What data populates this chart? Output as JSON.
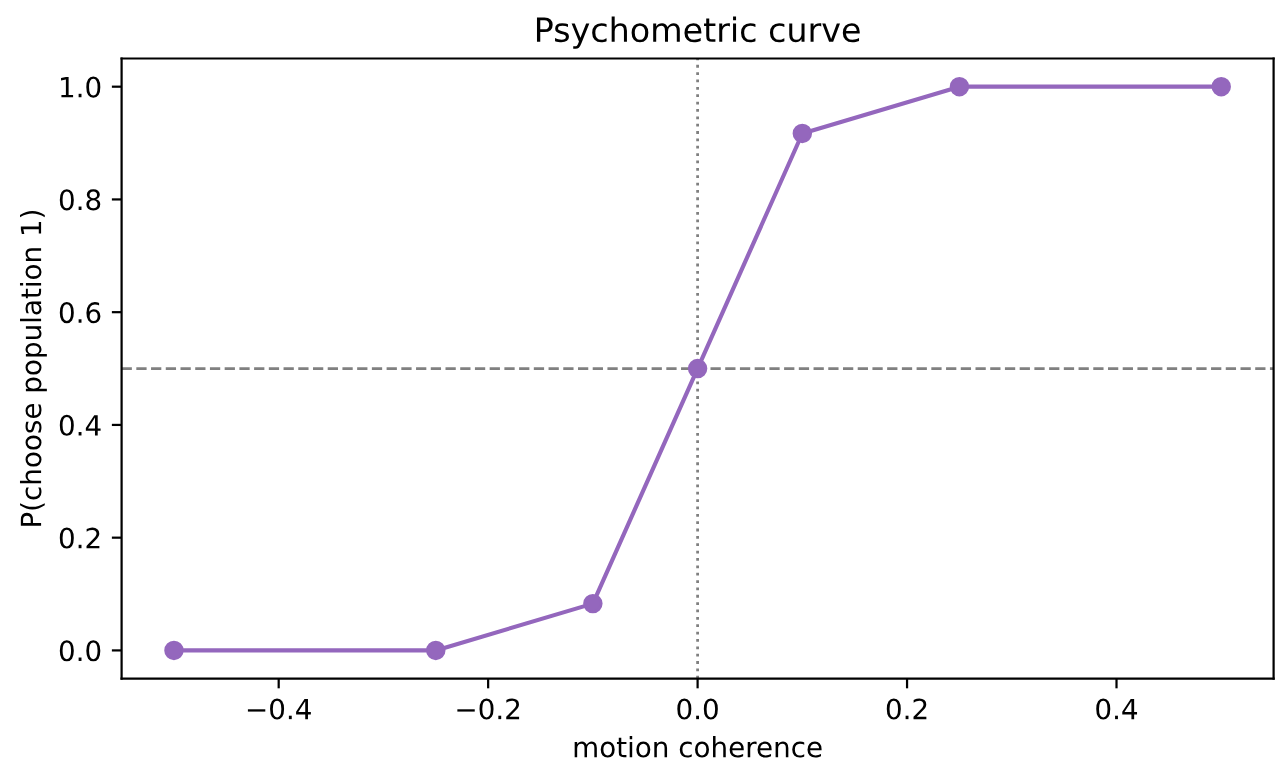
{
  "chart_data": {
    "type": "line",
    "title": "Psychometric curve",
    "xlabel": "motion coherence",
    "ylabel": "P(choose population 1)",
    "x": [
      -0.5,
      -0.25,
      -0.1,
      0,
      0.1,
      0.25,
      0.5
    ],
    "series": [
      {
        "color": "#9467bd",
        "values": [
          0,
          0,
          0.083,
          0.5,
          0.917,
          1,
          1
        ]
      }
    ],
    "marker": "circle",
    "line_style": "solid",
    "xlim": [
      -0.55,
      0.55
    ],
    "xticks": [
      {
        "value": -0.4,
        "label": "−0.4"
      },
      {
        "value": -0.2,
        "label": "−0.2"
      },
      {
        "value": 0,
        "label": "0.0"
      },
      {
        "value": 0.2,
        "label": "0.2"
      },
      {
        "value": 0.4,
        "label": "0.4"
      }
    ],
    "ylim": [
      -0.05,
      1.05
    ],
    "yticks": [
      {
        "value": 0,
        "label": "0.0"
      },
      {
        "value": 0.2,
        "label": "0.2"
      },
      {
        "value": 0.4,
        "label": "0.4"
      },
      {
        "value": 0.6,
        "label": "0.6"
      },
      {
        "value": 0.8,
        "label": "0.8"
      },
      {
        "value": 1,
        "label": "1.0"
      }
    ],
    "ref_lines": [
      {
        "axis": "y",
        "value": 0.5,
        "color": "#808080",
        "line_style": "dashed"
      },
      {
        "axis": "x",
        "value": 0,
        "color": "#808080",
        "line_style": "dotted"
      }
    ],
    "grid": false,
    "legend": false
  }
}
